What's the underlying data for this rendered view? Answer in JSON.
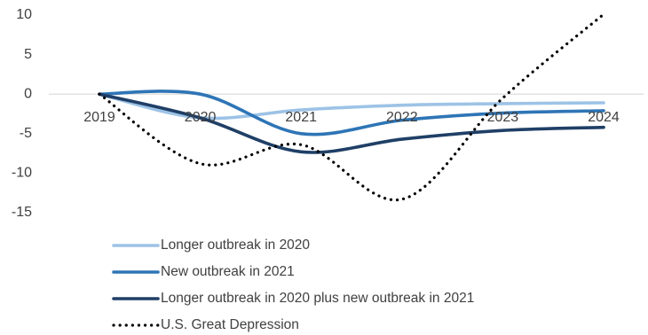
{
  "chart_data": {
    "type": "line",
    "title": "",
    "xlabel": "",
    "ylabel": "",
    "x": [
      "2019",
      "2020",
      "2021",
      "2022",
      "2023",
      "2024"
    ],
    "y_ticks": [
      10,
      5,
      0,
      -5,
      -10,
      -15
    ],
    "ylim": [
      -15,
      10
    ],
    "grid": false,
    "legend_position": "bottom",
    "series": [
      {
        "name": "Longer outbreak in 2020",
        "color": "#9dc3e6",
        "style": "solid",
        "points": [
          [
            2019,
            0
          ],
          [
            2020,
            -3
          ],
          [
            2021,
            -2
          ],
          [
            2022,
            -1.4
          ],
          [
            2023,
            -1.2
          ],
          [
            2024,
            -1.1
          ]
        ]
      },
      {
        "name": "New outbreak in 2021",
        "color": "#2e75b6",
        "style": "solid",
        "points": [
          [
            2019,
            0
          ],
          [
            2020,
            0
          ],
          [
            2021,
            -5
          ],
          [
            2022,
            -3.3
          ],
          [
            2023,
            -2.4
          ],
          [
            2024,
            -2.1
          ]
        ]
      },
      {
        "name": "Longer outbreak in 2020 plus new outbreak in 2021",
        "color": "#1f3f66",
        "style": "solid",
        "points": [
          [
            2019,
            0
          ],
          [
            2020,
            -3
          ],
          [
            2021,
            -7.3
          ],
          [
            2022,
            -5.7
          ],
          [
            2023,
            -4.6
          ],
          [
            2024,
            -4.2
          ]
        ]
      },
      {
        "name": "U.S. Great Depression",
        "color": "#000000",
        "style": "dotted",
        "points": [
          [
            2019,
            0
          ],
          [
            2020,
            -8.8
          ],
          [
            2021,
            -6.4
          ],
          [
            2022,
            -13.3
          ],
          [
            2023,
            -0.5
          ],
          [
            2024,
            10.1
          ]
        ]
      }
    ]
  }
}
